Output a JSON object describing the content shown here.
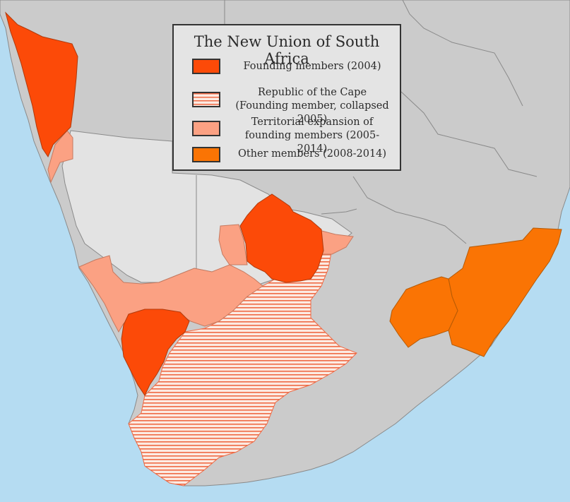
{
  "legend": {
    "title": "The New Union of South Africa",
    "items": [
      {
        "label": "Founding members (2004)",
        "color": "#fc4a08",
        "pattern": "solid"
      },
      {
        "label": "Republic of the Cape (Founding member, collapsed 2005)",
        "color": "#fa9277",
        "pattern": "horizontal-stripes"
      },
      {
        "label": "Territorial expansion of founding members (2005-2014)",
        "color": "#fba183",
        "pattern": "solid"
      },
      {
        "label": "Other members (2008-2014)",
        "color": "#fa7404",
        "pattern": "solid"
      }
    ]
  },
  "map_colors": {
    "ocean": "#b5dcf2",
    "land_other": "#cbcbcb",
    "land_light": "#e3e3e3",
    "border": "#8a8a8a"
  }
}
